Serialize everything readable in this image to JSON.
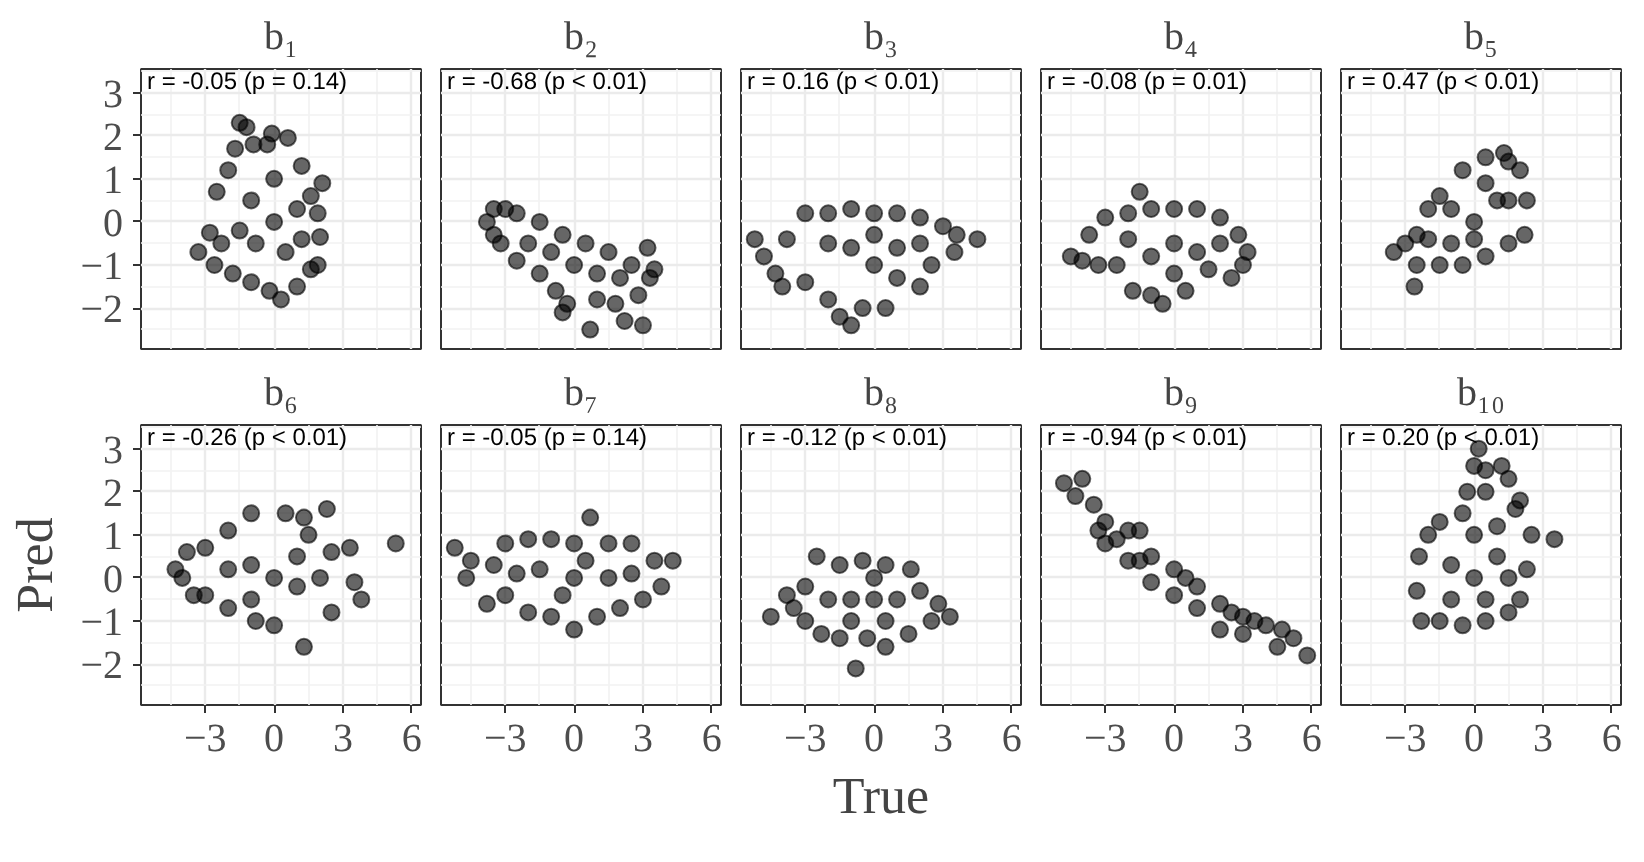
{
  "chart_data": [
    {
      "type": "scatter",
      "title": "b₁",
      "annotations": [
        "r = -0.05 (p = 0.14)"
      ],
      "color": "#000000",
      "marker": "circle",
      "grid": true,
      "tick_labels": "y",
      "xlim": [
        -5.8,
        6.4
      ],
      "ylim": [
        -2.95,
        3.55
      ],
      "xticks": [
        -3,
        0,
        3,
        6
      ],
      "yticks": [
        -2,
        -1,
        0,
        1,
        2,
        3
      ],
      "x": [
        -3.3,
        -2.8,
        -2.6,
        -2.5,
        -2,
        -1.7,
        -1.5,
        -1.2,
        -0.9,
        -0.3,
        -0.1,
        0.6,
        1.2,
        2.1,
        1.6,
        1.9,
        2,
        1.9,
        1.6,
        1,
        0.3,
        -0.2,
        -1,
        -1.8,
        -2.3,
        0,
        -1,
        1,
        0.5,
        -0.8,
        0,
        -1.5,
        1.2
      ],
      "values": [
        -0.7,
        -0.25,
        -1,
        0.7,
        1.2,
        1.7,
        2.3,
        2.2,
        1.8,
        1.8,
        2.05,
        1.95,
        1.3,
        0.9,
        0.6,
        0.2,
        -0.35,
        -1,
        -1.1,
        -1.5,
        -1.8,
        -1.6,
        -1.4,
        -1.2,
        -0.5,
        0,
        0.5,
        0.3,
        -0.7,
        -0.5,
        1,
        -0.2,
        -0.4
      ]
    },
    {
      "type": "scatter",
      "title": "b₂",
      "annotations": [
        "r = -0.68 (p < 0.01)"
      ],
      "color": "#000000",
      "marker": "circle",
      "grid": true,
      "tick_labels": false,
      "xlim": [
        -5.8,
        6.4
      ],
      "ylim": [
        -2.95,
        3.55
      ],
      "xticks": [
        -3,
        0,
        3,
        6
      ],
      "yticks": [
        -2,
        -1,
        0,
        1,
        2,
        3
      ],
      "x": [
        -3.8,
        -3.5,
        -3,
        -2.5,
        -1.5,
        -0.5,
        0.5,
        1.5,
        2.5,
        3.2,
        3.5,
        3.3,
        2.8,
        2.2,
        1.8,
        1,
        0.7,
        -0.3,
        -0.5,
        -0.8,
        -1.5,
        -2.5,
        -3.2,
        -2,
        0,
        1,
        2,
        -1,
        3,
        -3.5
      ],
      "values": [
        0,
        0.3,
        0.3,
        0.2,
        0,
        -0.3,
        -0.5,
        -0.7,
        -1,
        -0.6,
        -1.1,
        -1.3,
        -1.7,
        -2.3,
        -1.9,
        -1.8,
        -2.5,
        -1.9,
        -2.1,
        -1.6,
        -1.2,
        -0.9,
        -0.5,
        -0.5,
        -1,
        -1.2,
        -1.3,
        -0.7,
        -2.4,
        -0.3
      ]
    },
    {
      "type": "scatter",
      "title": "b₃",
      "annotations": [
        "r = 0.16 (p < 0.01)"
      ],
      "color": "#000000",
      "marker": "circle",
      "grid": true,
      "tick_labels": false,
      "xlim": [
        -5.8,
        6.4
      ],
      "ylim": [
        -2.95,
        3.55
      ],
      "xticks": [
        -3,
        0,
        3,
        6
      ],
      "yticks": [
        -2,
        -1,
        0,
        1,
        2,
        3
      ],
      "x": [
        -5.2,
        -4.8,
        -4.3,
        -3.8,
        -3,
        -2,
        -1,
        0,
        1,
        2,
        3,
        3.6,
        4.5,
        3.5,
        2.5,
        2,
        1,
        0.5,
        -0.5,
        -1,
        -1.5,
        -2,
        -3,
        -4,
        0,
        -2,
        2,
        -1,
        1,
        0
      ],
      "values": [
        -0.4,
        -0.8,
        -1.2,
        -0.4,
        0.2,
        0.2,
        0.3,
        0.2,
        0.2,
        0.1,
        -0.1,
        -0.3,
        -0.4,
        -0.7,
        -1,
        -1.5,
        -1.3,
        -2,
        -2,
        -2.4,
        -2.2,
        -1.8,
        -1.4,
        -1.5,
        -1,
        -0.5,
        -0.5,
        -0.6,
        -0.6,
        -0.3
      ]
    },
    {
      "type": "scatter",
      "title": "b₄",
      "annotations": [
        "r = -0.08 (p = 0.01)"
      ],
      "color": "#000000",
      "marker": "circle",
      "grid": true,
      "tick_labels": false,
      "xlim": [
        -5.8,
        6.4
      ],
      "ylim": [
        -2.95,
        3.55
      ],
      "xticks": [
        -3,
        0,
        3,
        6
      ],
      "yticks": [
        -2,
        -1,
        0,
        1,
        2,
        3
      ],
      "x": [
        -4.5,
        -4,
        -3.7,
        -3,
        -2,
        -1.5,
        -1,
        0,
        1,
        2,
        2.8,
        3.2,
        3,
        2.5,
        1.5,
        0.5,
        -0.5,
        -1,
        -1.8,
        -2.5,
        -3.3,
        0,
        -1,
        1,
        -2,
        2,
        0
      ],
      "values": [
        -0.8,
        -0.9,
        -0.3,
        0.1,
        0.2,
        0.7,
        0.3,
        0.3,
        0.3,
        0.1,
        -0.3,
        -0.7,
        -1,
        -1.3,
        -1.1,
        -1.6,
        -1.9,
        -1.7,
        -1.6,
        -1,
        -1,
        -0.5,
        -0.8,
        -0.7,
        -0.4,
        -0.5,
        -1.2
      ]
    },
    {
      "type": "scatter",
      "title": "b₅",
      "annotations": [
        "r = 0.47 (p < 0.01)"
      ],
      "color": "#000000",
      "marker": "circle",
      "grid": true,
      "tick_labels": false,
      "xlim": [
        -5.8,
        6.4
      ],
      "ylim": [
        -2.95,
        3.55
      ],
      "xticks": [
        -3,
        0,
        3,
        6
      ],
      "yticks": [
        -2,
        -1,
        0,
        1,
        2,
        3
      ],
      "x": [
        -3.5,
        -3,
        -2.5,
        -2,
        -1.5,
        -0.5,
        0.5,
        1.3,
        1.5,
        2,
        2.3,
        2.2,
        1.5,
        0.5,
        -0.5,
        -1.5,
        -2.5,
        -2.6,
        -1,
        0,
        1,
        -1,
        0.5,
        -2,
        1.5,
        0
      ],
      "values": [
        -0.7,
        -0.5,
        -0.3,
        0.3,
        0.6,
        1.2,
        1.5,
        1.6,
        1.4,
        1.2,
        0.5,
        -0.3,
        -0.5,
        -0.8,
        -1,
        -1,
        -1,
        -1.5,
        -0.5,
        0,
        0.5,
        0.3,
        0.9,
        -0.4,
        0.5,
        -0.4
      ]
    },
    {
      "type": "scatter",
      "title": "b₆",
      "ylabel": "Pred",
      "annotations": [
        "r = -0.26 (p < 0.01)"
      ],
      "color": "#000000",
      "marker": "circle",
      "grid": true,
      "xlim": [
        -5.8,
        6.4
      ],
      "ylim": [
        -2.95,
        3.55
      ],
      "xticks": [
        -3,
        0,
        3,
        6
      ],
      "yticks": [
        -2,
        -1,
        0,
        1,
        2,
        3
      ],
      "x": [
        -4.3,
        -4,
        -3.8,
        -3.5,
        -3,
        -2,
        -1,
        0.5,
        1.3,
        2.3,
        1.5,
        2.5,
        3.3,
        3.5,
        3.8,
        5.3,
        2.5,
        1.3,
        0,
        -0.8,
        -2,
        -3,
        0,
        -1,
        1,
        2,
        -2,
        1,
        -1
      ],
      "values": [
        0.2,
        0,
        0.6,
        -0.4,
        0.7,
        1.1,
        1.5,
        1.5,
        1.4,
        1.6,
        1,
        0.6,
        0.7,
        -0.1,
        -0.5,
        0.8,
        -0.8,
        -1.6,
        -1.1,
        -1,
        -0.7,
        -0.4,
        0,
        0.3,
        -0.2,
        0,
        0.2,
        0.5,
        -0.5
      ]
    },
    {
      "type": "scatter",
      "title": "b₇",
      "annotations": [
        "r = -0.05 (p = 0.14)"
      ],
      "color": "#000000",
      "marker": "circle",
      "grid": true,
      "tick_labels": "x",
      "xlim": [
        -5.8,
        6.4
      ],
      "ylim": [
        -2.95,
        3.55
      ],
      "xticks": [
        -3,
        0,
        3,
        6
      ],
      "yticks": [
        -2,
        -1,
        0,
        1,
        2,
        3
      ],
      "x": [
        -5.2,
        -4.5,
        -4.7,
        -3.8,
        -3.5,
        -3,
        -2,
        -1,
        0,
        0.7,
        1.5,
        2.5,
        3.5,
        4.3,
        3.8,
        3,
        2,
        1,
        0,
        -1,
        -2,
        -3,
        0,
        -1.5,
        1.5,
        -0.5,
        0.5,
        2.5,
        -2.5
      ],
      "values": [
        0.7,
        0.4,
        0,
        -0.6,
        0.3,
        0.8,
        0.9,
        0.9,
        0.8,
        1.4,
        0.8,
        0.8,
        0.4,
        0.4,
        -0.2,
        -0.5,
        -0.7,
        -0.9,
        -1.2,
        -0.9,
        -0.8,
        -0.4,
        0,
        0.2,
        0,
        -0.4,
        0.4,
        0.1,
        0.1
      ]
    },
    {
      "type": "scatter",
      "title": "b₈",
      "xlabel": "True",
      "annotations": [
        "r = -0.12 (p < 0.01)"
      ],
      "color": "#000000",
      "marker": "circle",
      "grid": true,
      "tick_labels": "x",
      "xlim": [
        -5.8,
        6.4
      ],
      "ylim": [
        -2.95,
        3.55
      ],
      "xticks": [
        -3,
        0,
        3,
        6
      ],
      "yticks": [
        -2,
        -1,
        0,
        1,
        2,
        3
      ],
      "x": [
        -4.5,
        -3.8,
        -3.5,
        -3,
        -2.5,
        -1.5,
        -0.5,
        0.5,
        1.6,
        2,
        2.8,
        3.3,
        2.5,
        1.5,
        0.5,
        -0.3,
        -0.8,
        -1.5,
        -2.3,
        -3,
        -1,
        0,
        1,
        -2,
        0,
        -1,
        0.5
      ],
      "values": [
        -0.9,
        -0.4,
        -0.7,
        -0.2,
        0.5,
        0.3,
        0.4,
        0.3,
        0.2,
        -0.3,
        -0.6,
        -0.9,
        -1,
        -1.3,
        -1.6,
        -1.4,
        -2.1,
        -1.4,
        -1.3,
        -1,
        -0.5,
        -0.5,
        -0.5,
        -0.5,
        0,
        -1,
        -1
      ]
    },
    {
      "type": "scatter",
      "title": "b₉",
      "annotations": [
        "r = -0.94 (p < 0.01)"
      ],
      "color": "#000000",
      "marker": "circle",
      "grid": true,
      "tick_labels": "x",
      "xlim": [
        -5.8,
        6.4
      ],
      "ylim": [
        -2.95,
        3.55
      ],
      "xticks": [
        -3,
        0,
        3,
        6
      ],
      "yticks": [
        -2,
        -1,
        0,
        1,
        2,
        3
      ],
      "x": [
        -4.8,
        -4.3,
        -4,
        -3.5,
        -3,
        -2,
        -1.5,
        -1,
        0,
        1,
        2,
        3,
        4,
        4.7,
        5.2,
        5.8,
        4.5,
        3,
        2,
        1,
        0,
        -1,
        -2,
        -3,
        -3.3,
        -1.5,
        0.5,
        2.5,
        3.5,
        -2.5
      ],
      "values": [
        2.2,
        1.9,
        2.3,
        1.7,
        1.3,
        1.1,
        1.1,
        0.5,
        0.2,
        -0.2,
        -0.6,
        -0.9,
        -1.1,
        -1.2,
        -1.4,
        -1.8,
        -1.6,
        -1.3,
        -1.2,
        -0.7,
        -0.4,
        -0.1,
        0.4,
        0.8,
        1.1,
        0.4,
        0,
        -0.8,
        -1,
        0.9
      ]
    },
    {
      "type": "scatter",
      "title": "b₁₀",
      "annotations": [
        "r = 0.20 (p < 0.01)"
      ],
      "color": "#000000",
      "marker": "circle",
      "grid": true,
      "tick_labels": "x",
      "xlim": [
        -5.8,
        6.4
      ],
      "ylim": [
        -2.95,
        3.55
      ],
      "xticks": [
        -3,
        0,
        3,
        6
      ],
      "yticks": [
        -2,
        -1,
        0,
        1,
        2,
        3
      ],
      "x": [
        0.2,
        0,
        0.5,
        1.2,
        1.5,
        -0.3,
        0.5,
        2,
        1.8,
        3.5,
        2.5,
        2.3,
        2,
        1.5,
        0.5,
        -0.5,
        -1.5,
        -2.3,
        -2.5,
        -2.4,
        -2,
        -1.5,
        -0.5,
        0,
        1,
        -1,
        0.5,
        -1,
        1,
        0,
        1.5
      ],
      "values": [
        3,
        2.6,
        2.5,
        2.6,
        2.3,
        2,
        2,
        1.8,
        1.6,
        0.9,
        1,
        0.2,
        -0.5,
        -0.8,
        -1,
        -1.1,
        -1,
        -1,
        -0.3,
        0.5,
        1,
        1.3,
        1.5,
        0,
        0.5,
        0.3,
        -0.5,
        -0.5,
        1.2,
        1,
        0
      ]
    }
  ]
}
